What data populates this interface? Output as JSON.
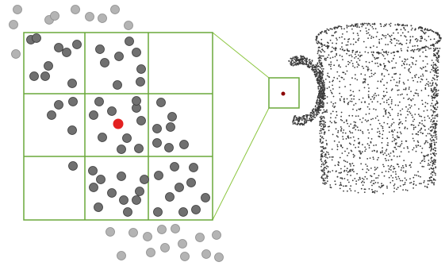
{
  "colors": {
    "grid": "#6aa83a",
    "connector": "#8cc63f",
    "inner_point_fill": "#707070",
    "inner_point_stroke": "#3a3a3a",
    "outer_point_fill": "#b4b4b4",
    "outer_point_stroke": "#8c8c8c",
    "center_point": "#e32020",
    "cloud_point": "#3a3a3a",
    "cloud_center_point": "#8b0000"
  },
  "icons": {
    "mug": "point-cloud-mug"
  }
}
